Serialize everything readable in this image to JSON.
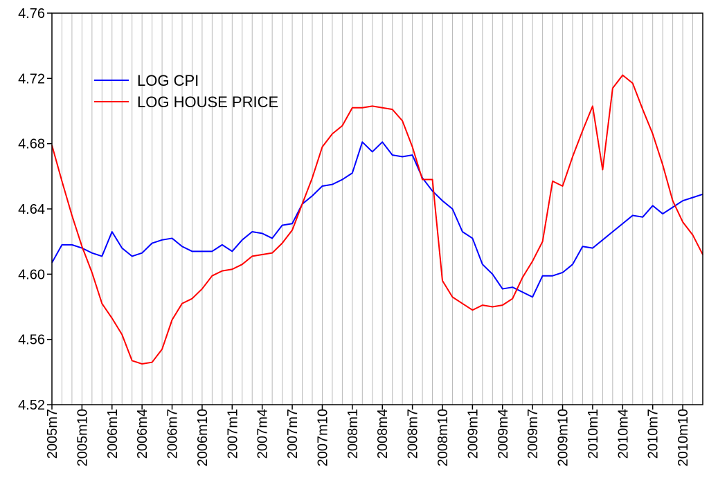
{
  "chart_data": {
    "type": "line",
    "title": "",
    "xlabel": "",
    "ylabel": "",
    "ylim": [
      4.52,
      4.76
    ],
    "yticks": [
      "4.52",
      "4.56",
      "4.60",
      "4.64",
      "4.68",
      "4.72",
      "4.76"
    ],
    "grid": "vertical",
    "legend_position": "top-left",
    "x": [
      "2005m7",
      "2005m8",
      "2005m9",
      "2005m10",
      "2005m11",
      "2005m12",
      "2006m1",
      "2006m2",
      "2006m3",
      "2006m4",
      "2006m5",
      "2006m6",
      "2006m7",
      "2006m8",
      "2006m9",
      "2006m10",
      "2006m11",
      "2006m12",
      "2007m1",
      "2007m2",
      "2007m3",
      "2007m4",
      "2007m5",
      "2007m6",
      "2007m7",
      "2007m8",
      "2007m9",
      "2007m10",
      "2007m11",
      "2007m12",
      "2008m1",
      "2008m2",
      "2008m3",
      "2008m4",
      "2008m5",
      "2008m6",
      "2008m7",
      "2008m8",
      "2008m9",
      "2008m10",
      "2008m11",
      "2008m12",
      "2009m1",
      "2009m2",
      "2009m3",
      "2009m4",
      "2009m5",
      "2009m6",
      "2009m7",
      "2009m8",
      "2009m9",
      "2009m10",
      "2009m11",
      "2009m12",
      "2010m1",
      "2010m2",
      "2010m3",
      "2010m4",
      "2010m5",
      "2010m6",
      "2010m7",
      "2010m8",
      "2010m9",
      "2010m10",
      "2010m11",
      "2010m12"
    ],
    "xtick_labels": [
      "2005m7",
      "2005m10",
      "2006m1",
      "2006m4",
      "2006m7",
      "2006m10",
      "2007m1",
      "2007m4",
      "2007m7",
      "2007m10",
      "2008m1",
      "2008m4",
      "2008m7",
      "2008m10",
      "2009m1",
      "2009m4",
      "2009m7",
      "2009m10",
      "2010m1",
      "2010m4",
      "2010m7",
      "2010m10"
    ],
    "series": [
      {
        "name": "LOG CPI",
        "color": "#0000ff",
        "values": [
          4.607,
          4.618,
          4.618,
          4.616,
          4.613,
          4.611,
          4.626,
          4.616,
          4.611,
          4.613,
          4.619,
          4.621,
          4.622,
          4.617,
          4.614,
          4.614,
          4.614,
          4.618,
          4.614,
          4.621,
          4.626,
          4.625,
          4.622,
          4.63,
          4.631,
          4.643,
          4.648,
          4.654,
          4.655,
          4.658,
          4.662,
          4.681,
          4.675,
          4.681,
          4.673,
          4.672,
          4.673,
          4.659,
          4.651,
          4.645,
          4.64,
          4.626,
          4.622,
          4.606,
          4.6,
          4.591,
          4.592,
          4.589,
          4.586,
          4.599,
          4.599,
          4.601,
          4.606,
          4.617,
          4.616,
          4.621,
          4.626,
          4.631,
          4.636,
          4.635,
          4.642,
          4.637,
          4.641,
          4.645,
          4.647,
          4.649
        ]
      },
      {
        "name": "LOG HOUSE PRICE",
        "color": "#ff0000",
        "values": [
          4.679,
          4.657,
          4.636,
          4.617,
          4.601,
          4.582,
          4.573,
          4.563,
          4.547,
          4.545,
          4.546,
          4.554,
          4.572,
          4.582,
          4.585,
          4.591,
          4.599,
          4.602,
          4.603,
          4.606,
          4.611,
          4.612,
          4.613,
          4.619,
          4.627,
          4.643,
          4.659,
          4.678,
          4.686,
          4.691,
          4.702,
          4.702,
          4.703,
          4.702,
          4.701,
          4.694,
          4.678,
          4.658,
          4.658,
          4.596,
          4.586,
          4.582,
          4.578,
          4.581,
          4.58,
          4.581,
          4.585,
          4.598,
          4.608,
          4.62,
          4.657,
          4.654,
          4.672,
          4.688,
          4.703,
          4.664,
          4.714,
          4.722,
          4.717,
          4.701,
          4.686,
          4.667,
          4.645,
          4.632,
          4.624,
          4.612
        ]
      }
    ]
  }
}
